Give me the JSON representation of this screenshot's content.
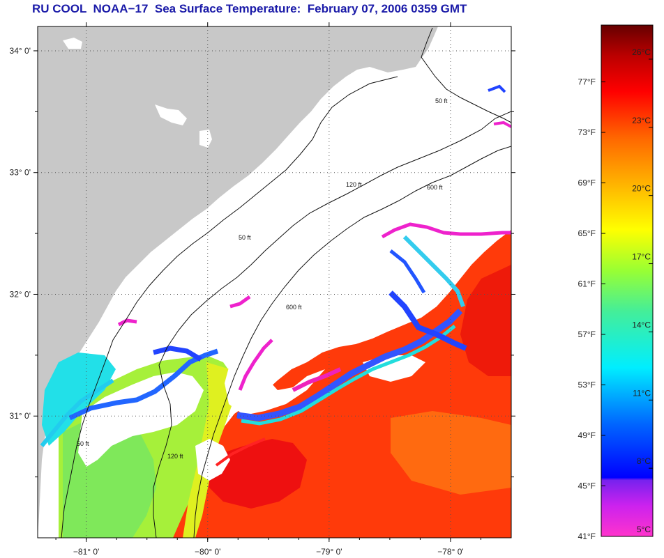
{
  "title": "RU COOL  NOAA−17  Sea Surface Temperature:  February 07, 2006 0359 GMT",
  "map": {
    "lat_labels": [
      {
        "label": "34° 0'",
        "lat": 34.0
      },
      {
        "label": "33° 0'",
        "lat": 33.0
      },
      {
        "label": "32° 0'",
        "lat": 32.0
      },
      {
        "label": "31° 0'",
        "lat": 31.0
      }
    ],
    "lon_labels": [
      {
        "label": "−81° 0'",
        "lon": -81.0
      },
      {
        "label": "−80° 0'",
        "lon": -80.0
      },
      {
        "label": "−79° 0'",
        "lon": -79.0
      },
      {
        "label": "−78° 0'",
        "lon": -78.0
      }
    ],
    "lat_range": [
      30.0,
      34.2
    ],
    "lon_range": [
      -81.4,
      -77.5
    ],
    "contour_labels": [
      "50 ft",
      "120 ft",
      "600 ft"
    ],
    "colors": {
      "land": "#c8c8c8",
      "cloud": "#ffffff",
      "coast": "#111111"
    }
  },
  "colorbar": {
    "fahrenheit": [
      "77°F",
      "73°F",
      "69°F",
      "65°F",
      "61°F",
      "57°F",
      "53°F",
      "49°F",
      "45°F",
      "41°F"
    ],
    "celsius": [
      "26°C",
      "23°C",
      "20°C",
      "17°C",
      "14°C",
      "11°C",
      "8°C",
      "5°C"
    ],
    "range_c": [
      5,
      27.5
    ],
    "stops": [
      "#ff33cc",
      "#aa22ee",
      "#0000ff",
      "#0099ff",
      "#00eeff",
      "#55ee88",
      "#aaff33",
      "#ffff00",
      "#ffaa00",
      "#ff6600",
      "#ff0000",
      "#aa0000",
      "#660000"
    ]
  }
}
